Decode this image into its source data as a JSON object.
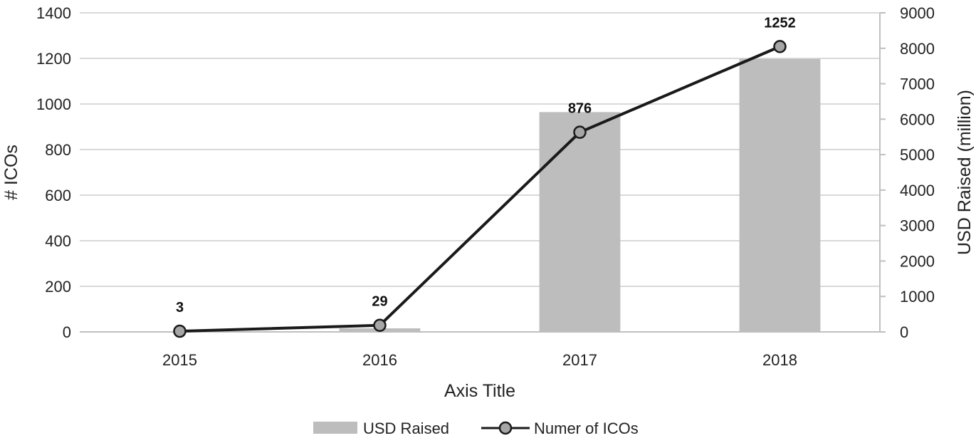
{
  "chart_data": {
    "type": "bar+line",
    "categories": [
      "2015",
      "2016",
      "2017",
      "2018"
    ],
    "series": [
      {
        "name": "USD Raised",
        "type": "bar",
        "axis": "right",
        "values": [
          0,
          100,
          6200,
          7700
        ],
        "color": "#bdbdbd"
      },
      {
        "name": "Numer of ICOs",
        "type": "line",
        "axis": "left",
        "values": [
          3,
          29,
          876,
          1252
        ],
        "data_labels": [
          "3",
          "29",
          "876",
          "1252"
        ],
        "color": "#1a1a1a",
        "marker_color": "#a6a6a6"
      }
    ],
    "title": "",
    "xlabel": "Axis Title",
    "ylabel": "# ICOs",
    "y2label": "USD Raised (million)",
    "ylim": [
      0,
      1400
    ],
    "y2lim": [
      0,
      9000
    ],
    "yticks": [
      "0",
      "200",
      "400",
      "600",
      "800",
      "1000",
      "1200",
      "1400"
    ],
    "y2ticks": [
      "0",
      "1000",
      "2000",
      "3000",
      "4000",
      "5000",
      "6000",
      "7000",
      "8000",
      "9000"
    ],
    "grid": true,
    "legend_position": "bottom",
    "gridline_color": "#d9d9d9"
  }
}
